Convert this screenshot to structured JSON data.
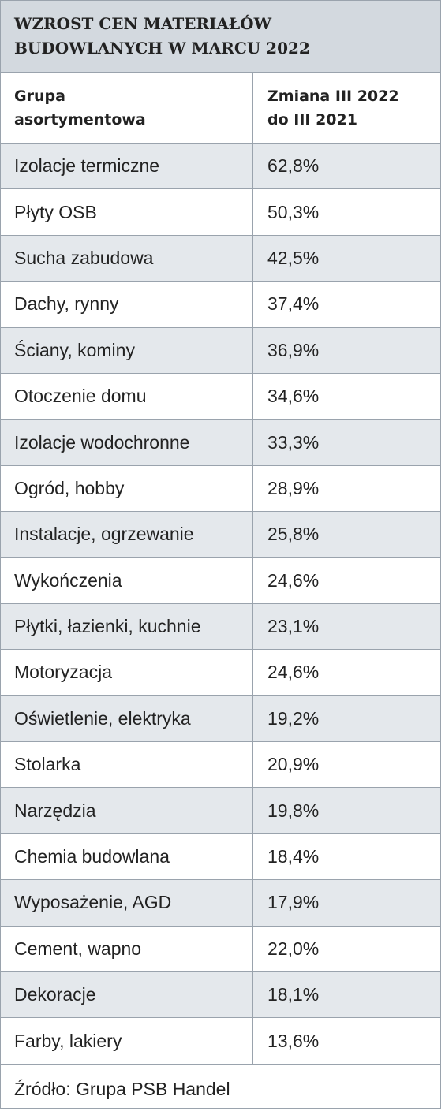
{
  "title": "WZROST CEN MATERIAŁÓW\nBUDOWLANYCH W MARCU 2022",
  "header": {
    "col1": "Grupa\nasortymentowa",
    "col2": "Zmiana III 2022\ndo III 2021"
  },
  "rows": [
    {
      "group": "Izolacje termiczne",
      "change": "62,8%"
    },
    {
      "group": "Płyty OSB",
      "change": "50,3%"
    },
    {
      "group": "Sucha zabudowa",
      "change": "42,5%"
    },
    {
      "group": "Dachy, rynny",
      "change": "37,4%"
    },
    {
      "group": "Ściany, kominy",
      "change": "36,9%"
    },
    {
      "group": "Otoczenie domu",
      "change": "34,6%"
    },
    {
      "group": "Izolacje wodochronne",
      "change": "33,3%"
    },
    {
      "group": "Ogród, hobby",
      "change": "28,9%"
    },
    {
      "group": "Instalacje, ogrzewanie",
      "change": "25,8%"
    },
    {
      "group": "Wykończenia",
      "change": "24,6%"
    },
    {
      "group": "Płytki, łazienki, kuchnie",
      "change": "23,1%"
    },
    {
      "group": "Motoryzacja",
      "change": "24,6%"
    },
    {
      "group": "Oświetlenie, elektryka",
      "change": "19,2%"
    },
    {
      "group": "Stolarka",
      "change": "20,9%"
    },
    {
      "group": "Narzędzia",
      "change": "19,8%"
    },
    {
      "group": "Chemia budowlana",
      "change": "18,4%"
    },
    {
      "group": "Wyposażenie, AGD",
      "change": "17,9%"
    },
    {
      "group": "Cement, wapno",
      "change": "22,0%"
    },
    {
      "group": "Dekoracje",
      "change": "18,1%"
    },
    {
      "group": "Farby, lakiery",
      "change": "13,6%"
    }
  ],
  "footer": "Źródło: Grupa PSB Handel",
  "colors": {
    "title_bg": "#d3d9df",
    "shade_row": "#e4e8ec",
    "border": "#9aa3ad",
    "text": "#222222"
  }
}
